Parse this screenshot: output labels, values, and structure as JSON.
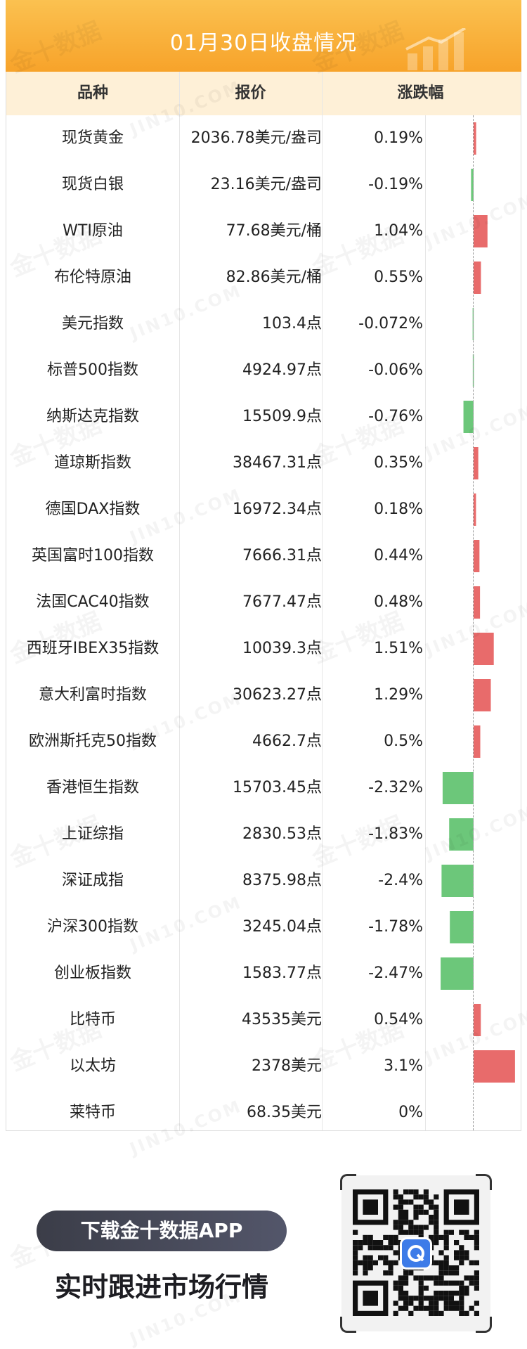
{
  "header": {
    "title": "01月30日收盘情况"
  },
  "table": {
    "col_name": "品种",
    "col_price": "报价",
    "col_change": "涨跌幅"
  },
  "chart_data": {
    "type": "bar",
    "orientation": "horizontal",
    "categories": [
      "现货黄金",
      "现货白银",
      "WTI原油",
      "布伦特原油",
      "美元指数",
      "标普500指数",
      "纳斯达克指数",
      "道琼斯指数",
      "德国DAX指数",
      "英国富时100指数",
      "法国CAC40指数",
      "西班牙IBEX35指数",
      "意大利富时指数",
      "欧洲斯托克50指数",
      "香港恒生指数",
      "上证综指",
      "深证成指",
      "沪深300指数",
      "创业板指数",
      "比特币",
      "以太坊",
      "莱特币"
    ],
    "values": [
      0.19,
      -0.19,
      1.04,
      0.55,
      -0.072,
      -0.06,
      -0.76,
      0.35,
      0.18,
      0.44,
      0.48,
      1.51,
      1.29,
      0.5,
      -2.32,
      -1.83,
      -2.4,
      -1.78,
      -2.47,
      0.54,
      3.1,
      0
    ],
    "prices": [
      "2036.78美元/盎司",
      "23.16美元/盎司",
      "77.68美元/桶",
      "82.86美元/桶",
      "103.4点",
      "4924.97点",
      "15509.9点",
      "38467.31点",
      "16972.34点",
      "7666.31点",
      "7677.47点",
      "10039.3点",
      "30623.27点",
      "4662.7点",
      "15703.45点",
      "2830.53点",
      "8375.98点",
      "3245.04点",
      "1583.77点",
      "43535美元",
      "2378美元",
      "68.35美元"
    ],
    "change_labels": [
      "0.19%",
      "-0.19%",
      "1.04%",
      "0.55%",
      "-0.072%",
      "-0.06%",
      "-0.76%",
      "0.35%",
      "0.18%",
      "0.44%",
      "0.48%",
      "1.51%",
      "1.29%",
      "0.5%",
      "-2.32%",
      "-1.83%",
      "-2.4%",
      "-1.78%",
      "-2.47%",
      "0.54%",
      "3.1%",
      "0%"
    ],
    "colors": {
      "positive": "#e86b6b",
      "negative": "#6cc77a"
    }
  },
  "watermark": {
    "cn": "金十数据",
    "en": "JIN10.COM"
  },
  "promo": {
    "download_label": "下载金十数据APP",
    "tagline": "实时跟进市场行情"
  }
}
